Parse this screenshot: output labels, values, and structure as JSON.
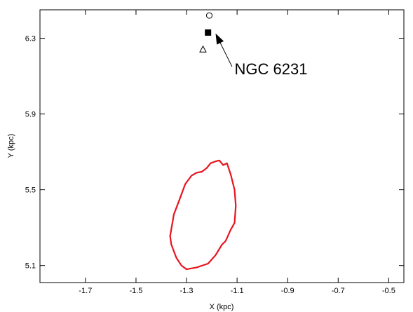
{
  "chart_data": {
    "type": "scatter",
    "title": "",
    "xlabel": "X (kpc)",
    "ylabel": "Y (kpc)",
    "xlim": [
      -1.88,
      -0.44
    ],
    "ylim": [
      5.01,
      6.45
    ],
    "x_ticks": [
      -1.7,
      -1.5,
      -1.3,
      -1.1,
      -0.9,
      -0.7,
      -0.5
    ],
    "y_ticks": [
      5.1,
      5.5,
      5.9,
      6.3
    ],
    "x_tick_labels": [
      "-1.7",
      "-1.5",
      "-1.3",
      "-1.1",
      "-0.9",
      "-0.7",
      "-0.5"
    ],
    "y_tick_labels": [
      "5.1",
      "5.5",
      "5.9",
      "6.3"
    ],
    "grid": false,
    "points": [
      {
        "marker": "circle-open",
        "x": -1.21,
        "y": 6.42
      },
      {
        "marker": "square-filled",
        "x": -1.215,
        "y": 6.33
      },
      {
        "marker": "triangle-open",
        "x": -1.235,
        "y": 6.24
      }
    ],
    "contour": {
      "color": "#e8141e",
      "points": [
        [
          -1.17,
          5.655
        ],
        [
          -1.155,
          5.63
        ],
        [
          -1.14,
          5.64
        ],
        [
          -1.125,
          5.58
        ],
        [
          -1.11,
          5.5
        ],
        [
          -1.105,
          5.415
        ],
        [
          -1.11,
          5.325
        ],
        [
          -1.125,
          5.29
        ],
        [
          -1.145,
          5.23
        ],
        [
          -1.16,
          5.21
        ],
        [
          -1.185,
          5.155
        ],
        [
          -1.215,
          5.11
        ],
        [
          -1.26,
          5.09
        ],
        [
          -1.3,
          5.08
        ],
        [
          -1.32,
          5.1
        ],
        [
          -1.34,
          5.14
        ],
        [
          -1.36,
          5.21
        ],
        [
          -1.365,
          5.255
        ],
        [
          -1.35,
          5.37
        ],
        [
          -1.33,
          5.44
        ],
        [
          -1.305,
          5.53
        ],
        [
          -1.28,
          5.575
        ],
        [
          -1.26,
          5.59
        ],
        [
          -1.24,
          5.595
        ],
        [
          -1.22,
          5.615
        ],
        [
          -1.205,
          5.64
        ],
        [
          -1.185,
          5.65
        ],
        [
          -1.17,
          5.655
        ]
      ]
    },
    "annotation": {
      "text": "NGC 6231",
      "arrow_from": [
        -1.12,
        6.15
      ],
      "arrow_to": [
        -1.185,
        6.325
      ],
      "text_at": [
        -1.11,
        6.11
      ]
    }
  }
}
